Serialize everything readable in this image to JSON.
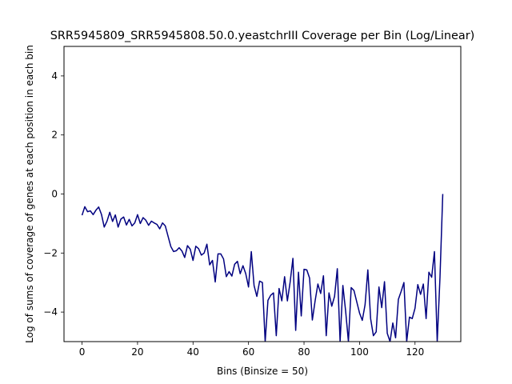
{
  "chart_data": {
    "type": "line",
    "title": "SRR5945809_SRR5945808.50.0.yeastchrIII Coverage per Bin (Log/Linear)",
    "xlabel": "Bins (Binsize = 50)",
    "ylabel": "Log of sums of coverage of genes at each position in each bin",
    "xlim": [
      -6.5,
      136.5
    ],
    "ylim": [
      -5,
      5
    ],
    "xticks": [
      0,
      20,
      40,
      60,
      80,
      100,
      120
    ],
    "yticks": [
      -4,
      -2,
      0,
      2,
      4
    ],
    "grid": false,
    "line_color": "#000080",
    "series": [
      {
        "x": [
          0,
          1,
          2,
          3,
          4,
          5,
          6,
          7,
          8,
          9,
          10,
          11,
          12,
          13,
          14,
          15,
          16,
          17,
          18,
          19,
          20,
          21,
          22,
          23,
          24,
          25,
          26,
          27,
          28,
          29,
          30,
          31,
          32,
          33,
          34,
          35,
          36,
          37,
          38,
          39,
          40,
          41,
          42,
          43,
          44,
          45,
          46,
          47,
          48,
          49,
          50,
          51,
          52,
          53,
          54,
          55,
          56,
          57,
          58,
          59,
          60,
          61,
          62,
          63,
          64,
          65,
          66,
          67,
          68,
          69,
          70,
          71,
          72,
          73,
          74,
          75,
          76,
          77,
          78,
          79,
          80,
          81,
          82,
          83,
          84,
          85,
          86,
          87,
          88,
          89,
          90,
          91,
          92,
          93,
          94,
          95,
          96,
          97,
          98,
          99,
          100,
          101,
          102,
          103,
          104,
          105,
          106,
          107,
          108,
          109,
          110,
          111,
          112,
          113,
          114,
          115,
          116,
          117,
          118,
          119,
          120,
          121,
          122,
          123,
          124,
          125,
          126,
          127,
          128,
          129,
          130
        ],
        "values": [
          -0.72,
          -0.43,
          -0.6,
          -0.57,
          -0.7,
          -0.55,
          -0.44,
          -0.69,
          -1.12,
          -0.92,
          -0.62,
          -0.93,
          -0.71,
          -1.12,
          -0.85,
          -0.78,
          -1.05,
          -0.86,
          -1.08,
          -0.98,
          -0.7,
          -1.0,
          -0.8,
          -0.89,
          -1.06,
          -0.92,
          -0.98,
          -1.03,
          -1.18,
          -0.98,
          -1.08,
          -1.43,
          -1.78,
          -1.95,
          -1.92,
          -1.82,
          -1.93,
          -2.15,
          -1.75,
          -1.87,
          -2.25,
          -1.77,
          -1.85,
          -2.07,
          -2.0,
          -1.7,
          -2.4,
          -2.25,
          -2.98,
          -2.03,
          -2.03,
          -2.2,
          -2.8,
          -2.63,
          -2.78,
          -2.38,
          -2.28,
          -2.7,
          -2.43,
          -2.7,
          -3.15,
          -1.95,
          -3.1,
          -3.47,
          -2.95,
          -3.0,
          -5.0,
          -3.6,
          -3.43,
          -3.35,
          -4.8,
          -3.2,
          -3.62,
          -2.8,
          -3.62,
          -2.98,
          -2.18,
          -4.62,
          -2.65,
          -4.13,
          -2.55,
          -2.57,
          -2.85,
          -4.27,
          -3.62,
          -3.05,
          -3.37,
          -2.77,
          -4.8,
          -3.35,
          -3.8,
          -3.47,
          -2.53,
          -5.0,
          -3.1,
          -3.97,
          -5.0,
          -3.17,
          -3.27,
          -3.65,
          -4.03,
          -4.28,
          -3.75,
          -2.57,
          -4.22,
          -4.8,
          -4.67,
          -3.15,
          -3.85,
          -2.97,
          -4.72,
          -5.0,
          -4.37,
          -4.87,
          -3.57,
          -3.3,
          -3.0,
          -5.0,
          -4.17,
          -4.22,
          -3.87,
          -3.07,
          -3.4,
          -3.05,
          -4.22,
          -2.65,
          -2.82,
          -1.95,
          -5.0,
          -2.82,
          0.0
        ]
      }
    ]
  }
}
